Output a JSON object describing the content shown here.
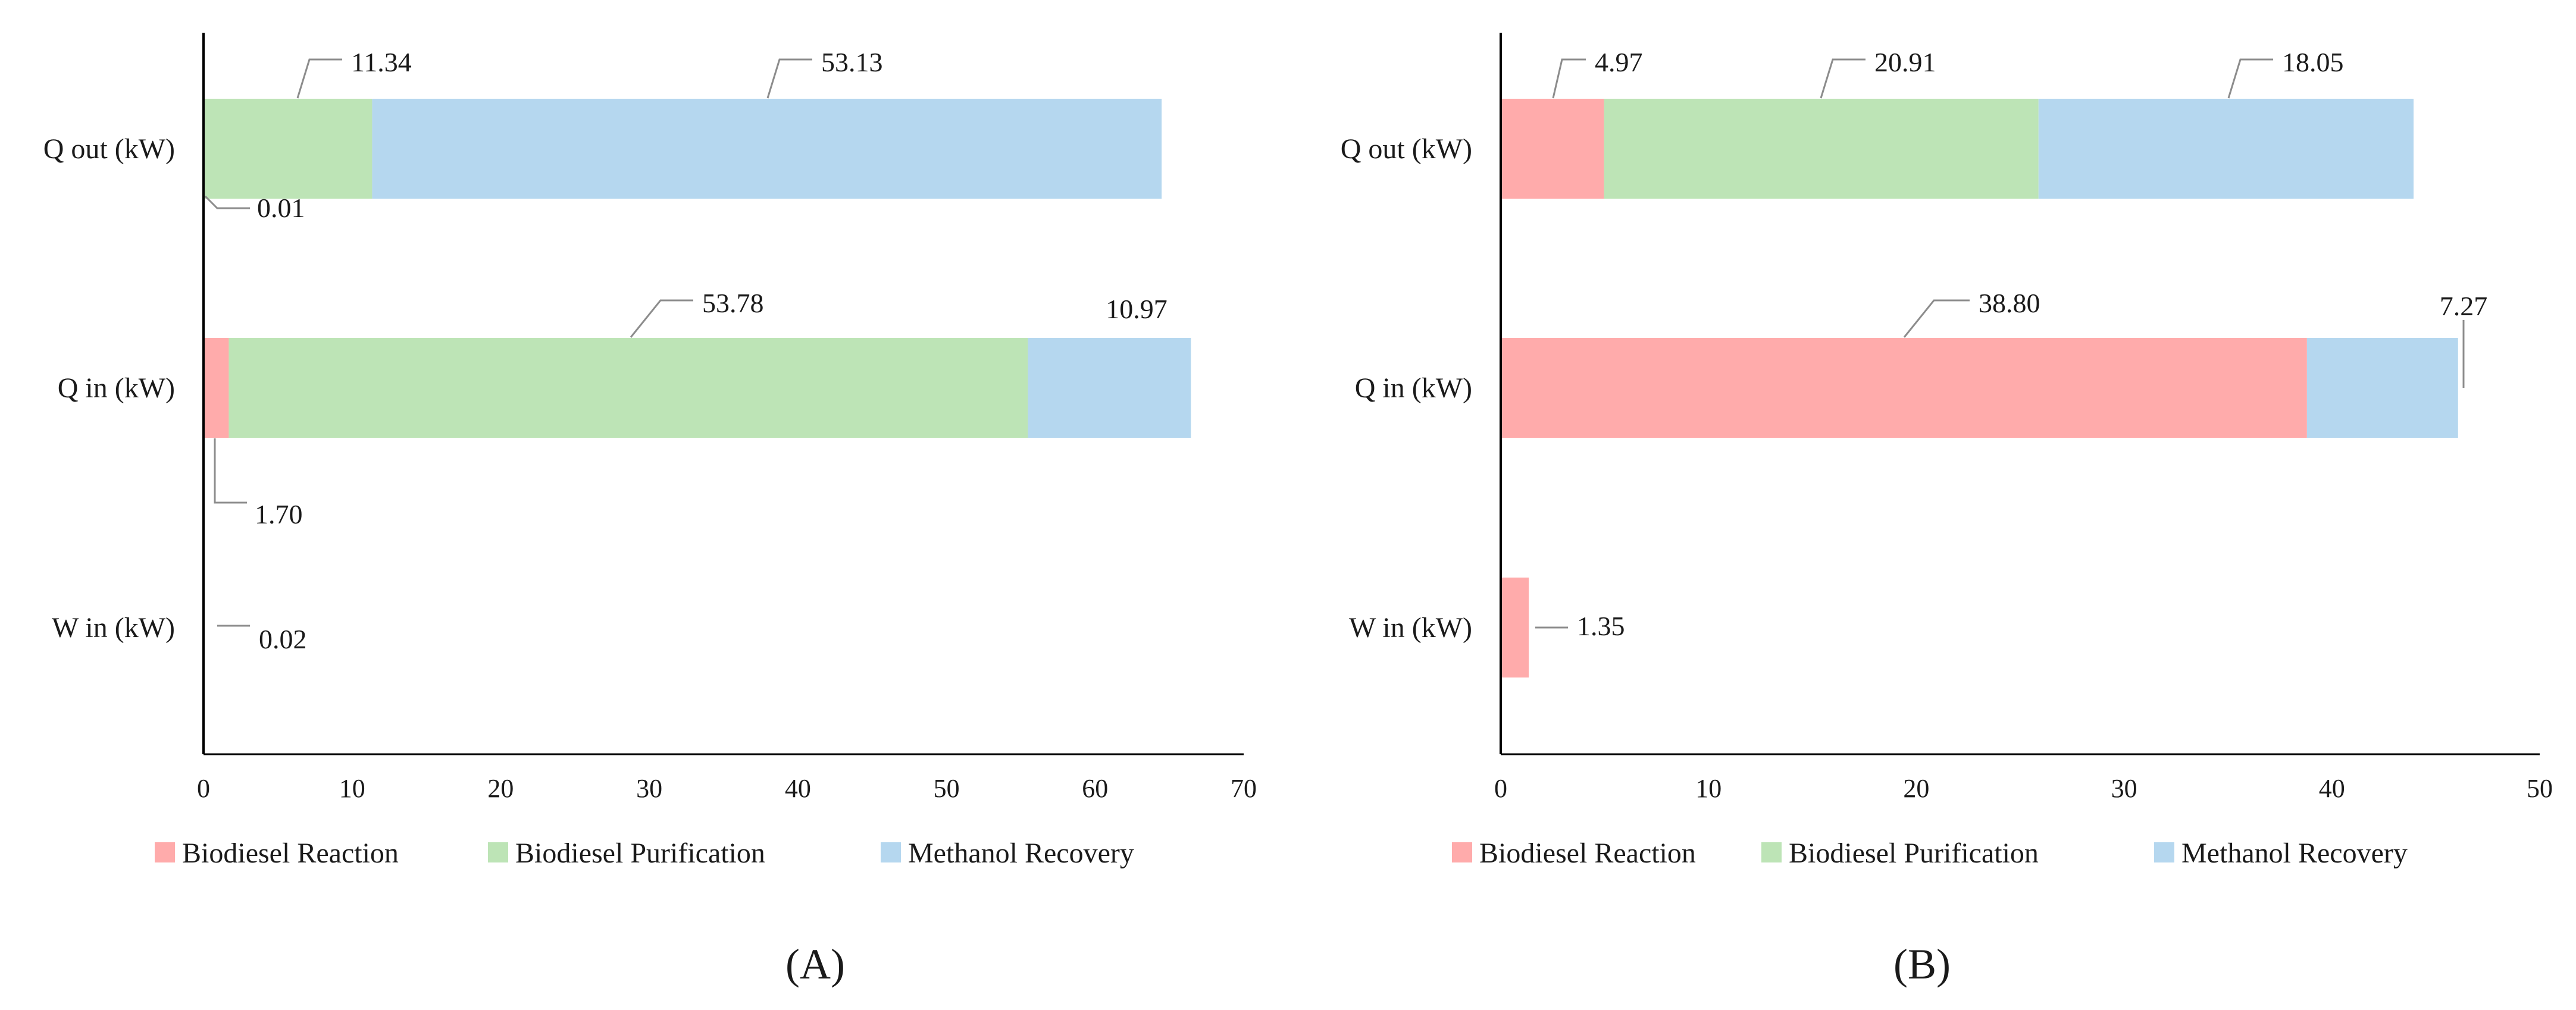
{
  "chart_data": [
    {
      "type": "bar",
      "orientation": "horizontal",
      "stacked": true,
      "panel_label": "(A)",
      "categories": [
        "Q out (kW)",
        "Q in (kW)",
        "W in (kW)"
      ],
      "series": [
        {
          "name": "Biodiesel Reaction",
          "color": "#ffabab",
          "values": [
            0.01,
            1.7,
            0.02
          ]
        },
        {
          "name": "Biodiesel Purification",
          "color": "#bde4b6",
          "values": [
            11.34,
            53.78,
            0
          ]
        },
        {
          "name": "Methanol Recovery",
          "color": "#b5d7ef",
          "values": [
            53.13,
            10.97,
            0
          ]
        }
      ],
      "xlim": [
        0,
        70
      ],
      "xticks": [
        "0",
        "10",
        "20",
        "30",
        "40",
        "50",
        "60",
        "70"
      ],
      "data_labels": [
        {
          "category": 0,
          "series": 0,
          "text": "0.01"
        },
        {
          "category": 0,
          "series": 1,
          "text": "11.34"
        },
        {
          "category": 0,
          "series": 2,
          "text": "53.13"
        },
        {
          "category": 1,
          "series": 0,
          "text": "1.70"
        },
        {
          "category": 1,
          "series": 1,
          "text": "53.78"
        },
        {
          "category": 1,
          "series": 2,
          "text": "10.97"
        },
        {
          "category": 2,
          "series": 0,
          "text": "0.02"
        }
      ],
      "legend_position": "bottom"
    },
    {
      "type": "bar",
      "orientation": "horizontal",
      "stacked": true,
      "panel_label": "(B)",
      "categories": [
        "Q out (kW)",
        "Q in (kW)",
        "W in (kW)"
      ],
      "series": [
        {
          "name": "Biodiesel Reaction",
          "color": "#ffabab",
          "values": [
            4.97,
            38.8,
            1.35
          ]
        },
        {
          "name": "Biodiesel Purification",
          "color": "#bde4b6",
          "values": [
            20.91,
            0,
            0
          ]
        },
        {
          "name": "Methanol Recovery",
          "color": "#b5d7ef",
          "values": [
            18.05,
            7.27,
            0
          ]
        }
      ],
      "xlim": [
        0,
        50
      ],
      "xticks": [
        "0",
        "10",
        "20",
        "30",
        "40",
        "50"
      ],
      "data_labels": [
        {
          "category": 0,
          "series": 0,
          "text": "4.97"
        },
        {
          "category": 0,
          "series": 1,
          "text": "20.91"
        },
        {
          "category": 0,
          "series": 2,
          "text": "18.05"
        },
        {
          "category": 1,
          "series": 0,
          "text": "38.80"
        },
        {
          "category": 1,
          "series": 2,
          "text": "7.27"
        },
        {
          "category": 2,
          "series": 0,
          "text": "1.35"
        }
      ],
      "legend_position": "bottom"
    }
  ]
}
